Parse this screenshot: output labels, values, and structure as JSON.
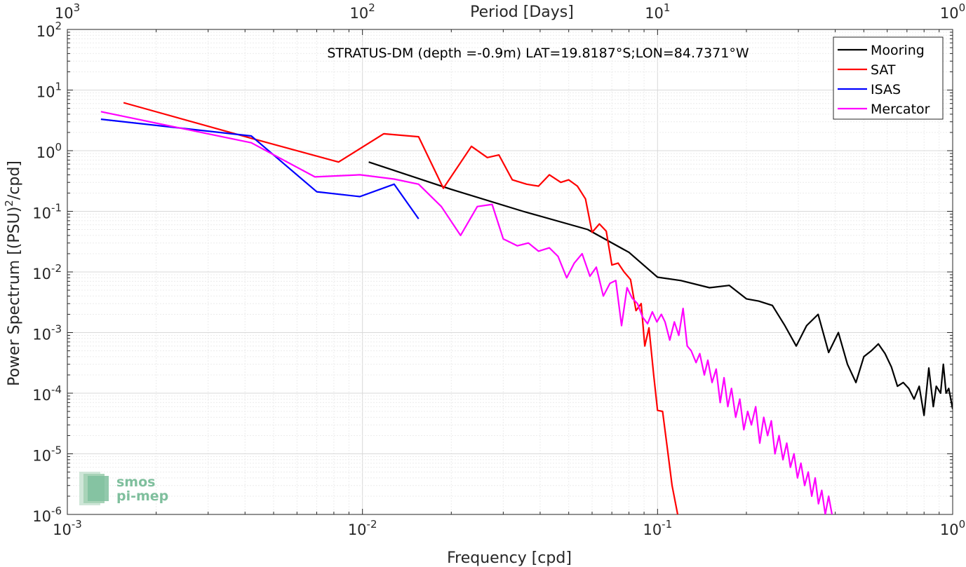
{
  "chart_data": {
    "type": "line",
    "title": "STRATUS-DM (depth =-0.9m) LAT=19.8187°S;LON=84.7371°W",
    "xlabel": "Frequency [cpd]",
    "ylabel": "Power Spectrum [(PSU)",
    "ylabel_sup": "2",
    "ylabel_tail": "/cpd]",
    "top_xlabel": "Period [Days]",
    "x_scale": "log",
    "y_scale": "log",
    "xlim": [
      0.001,
      1
    ],
    "ylim": [
      1e-06,
      100
    ],
    "grid": true,
    "legend_position": "top-right",
    "x_ticks": [
      {
        "value": 0.001,
        "base": "10",
        "exp": "-3"
      },
      {
        "value": 0.01,
        "base": "10",
        "exp": "-2"
      },
      {
        "value": 0.1,
        "base": "10",
        "exp": "-1"
      },
      {
        "value": 1,
        "base": "10",
        "exp": "0"
      }
    ],
    "top_x_ticks": [
      {
        "value": 0.001,
        "base": "10",
        "exp": "3"
      },
      {
        "value": 0.01,
        "base": "10",
        "exp": "2"
      },
      {
        "value": 0.1,
        "base": "10",
        "exp": "1"
      },
      {
        "value": 1,
        "base": "10",
        "exp": "0"
      }
    ],
    "y_ticks": [
      {
        "value": 1e-06,
        "base": "10",
        "exp": "-6"
      },
      {
        "value": 1e-05,
        "base": "10",
        "exp": "-5"
      },
      {
        "value": 0.0001,
        "base": "10",
        "exp": "-4"
      },
      {
        "value": 0.001,
        "base": "10",
        "exp": "-3"
      },
      {
        "value": 0.01,
        "base": "10",
        "exp": "-2"
      },
      {
        "value": 0.1,
        "base": "10",
        "exp": "-1"
      },
      {
        "value": 1,
        "base": "10",
        "exp": "0"
      },
      {
        "value": 10,
        "base": "10",
        "exp": "1"
      },
      {
        "value": 100,
        "base": "10",
        "exp": "2"
      }
    ],
    "series": [
      {
        "name": "Mooring",
        "color": "#000000",
        "points": [
          [
            0.0105,
            0.65
          ],
          [
            0.02,
            0.23
          ],
          [
            0.035,
            0.1
          ],
          [
            0.058,
            0.05
          ],
          [
            0.08,
            0.021
          ],
          [
            0.1,
            0.0082
          ],
          [
            0.12,
            0.0072
          ],
          [
            0.15,
            0.0055
          ],
          [
            0.175,
            0.006
          ],
          [
            0.2,
            0.0036
          ],
          [
            0.22,
            0.0033
          ],
          [
            0.245,
            0.0028
          ],
          [
            0.27,
            0.0013
          ],
          [
            0.295,
            0.0006
          ],
          [
            0.32,
            0.0013
          ],
          [
            0.35,
            0.002
          ],
          [
            0.38,
            0.00047
          ],
          [
            0.41,
            0.001
          ],
          [
            0.44,
            0.0003
          ],
          [
            0.47,
            0.00015
          ],
          [
            0.5,
            0.0004
          ],
          [
            0.53,
            0.0005
          ],
          [
            0.56,
            0.00065
          ],
          [
            0.59,
            0.00045
          ],
          [
            0.62,
            0.00027
          ],
          [
            0.65,
            0.00013
          ],
          [
            0.68,
            0.00015
          ],
          [
            0.71,
            0.00012
          ],
          [
            0.74,
            8e-05
          ],
          [
            0.77,
            0.00013
          ],
          [
            0.8,
            4.3e-05
          ],
          [
            0.83,
            0.00026
          ],
          [
            0.86,
            6e-05
          ],
          [
            0.88,
            0.00013
          ],
          [
            0.91,
            0.0001
          ],
          [
            0.93,
            0.0003
          ],
          [
            0.95,
            0.0001
          ],
          [
            0.97,
            0.00012
          ],
          [
            1.0,
            5.5e-05
          ]
        ]
      },
      {
        "name": "SAT",
        "color": "#ff0000",
        "points": [
          [
            0.00155,
            6.2
          ],
          [
            0.0042,
            1.6
          ],
          [
            0.0083,
            0.65
          ],
          [
            0.0118,
            1.9
          ],
          [
            0.0155,
            1.7
          ],
          [
            0.0188,
            0.24
          ],
          [
            0.0234,
            1.18
          ],
          [
            0.0265,
            0.77
          ],
          [
            0.029,
            0.85
          ],
          [
            0.0322,
            0.33
          ],
          [
            0.036,
            0.28
          ],
          [
            0.0395,
            0.26
          ],
          [
            0.043,
            0.4
          ],
          [
            0.047,
            0.3
          ],
          [
            0.05,
            0.33
          ],
          [
            0.0535,
            0.26
          ],
          [
            0.057,
            0.16
          ],
          [
            0.06,
            0.045
          ],
          [
            0.0635,
            0.062
          ],
          [
            0.067,
            0.047
          ],
          [
            0.07,
            0.013
          ],
          [
            0.0735,
            0.014
          ],
          [
            0.077,
            0.01
          ],
          [
            0.081,
            0.0075
          ],
          [
            0.0845,
            0.0023
          ],
          [
            0.088,
            0.003
          ],
          [
            0.0905,
            0.0006
          ],
          [
            0.0935,
            0.0012
          ],
          [
            0.097,
            0.0002
          ],
          [
            0.1,
            5.2e-05
          ],
          [
            0.104,
            5e-05
          ],
          [
            0.108,
            1.2e-05
          ],
          [
            0.112,
            3e-06
          ],
          [
            0.117,
            1e-06
          ]
        ]
      },
      {
        "name": "ISAS",
        "color": "#0000ff",
        "points": [
          [
            0.0013,
            3.3
          ],
          [
            0.0042,
            1.75
          ],
          [
            0.007,
            0.21
          ],
          [
            0.0098,
            0.175
          ],
          [
            0.0128,
            0.28
          ],
          [
            0.0155,
            0.075
          ]
        ]
      },
      {
        "name": "Mercator",
        "color": "#ff00ff",
        "points": [
          [
            0.0013,
            4.4
          ],
          [
            0.0042,
            1.35
          ],
          [
            0.0069,
            0.37
          ],
          [
            0.0098,
            0.4
          ],
          [
            0.0128,
            0.34
          ],
          [
            0.0155,
            0.28
          ],
          [
            0.0185,
            0.12
          ],
          [
            0.0215,
            0.04
          ],
          [
            0.0245,
            0.12
          ],
          [
            0.0275,
            0.13
          ],
          [
            0.03,
            0.035
          ],
          [
            0.0335,
            0.027
          ],
          [
            0.0365,
            0.03
          ],
          [
            0.0395,
            0.022
          ],
          [
            0.043,
            0.025
          ],
          [
            0.046,
            0.018
          ],
          [
            0.0492,
            0.008
          ],
          [
            0.0522,
            0.014
          ],
          [
            0.0555,
            0.02
          ],
          [
            0.059,
            0.0085
          ],
          [
            0.062,
            0.012
          ],
          [
            0.0655,
            0.004
          ],
          [
            0.069,
            0.0065
          ],
          [
            0.0722,
            0.0072
          ],
          [
            0.0755,
            0.0013
          ],
          [
            0.0788,
            0.0055
          ],
          [
            0.082,
            0.0037
          ],
          [
            0.0855,
            0.003
          ],
          [
            0.089,
            0.0018
          ],
          [
            0.0925,
            0.0014
          ],
          [
            0.096,
            0.0022
          ],
          [
            0.0995,
            0.0015
          ],
          [
            0.103,
            0.002
          ],
          [
            0.106,
            0.0015
          ],
          [
            0.11,
            0.00075
          ],
          [
            0.114,
            0.0015
          ],
          [
            0.118,
            0.0009
          ],
          [
            0.122,
            0.0025
          ],
          [
            0.126,
            0.0006
          ],
          [
            0.13,
            0.0005
          ],
          [
            0.135,
            0.00032
          ],
          [
            0.139,
            0.00045
          ],
          [
            0.144,
            0.0002
          ],
          [
            0.148,
            0.00035
          ],
          [
            0.153,
            0.00015
          ],
          [
            0.158,
            0.00025
          ],
          [
            0.163,
            7e-05
          ],
          [
            0.168,
            0.00018
          ],
          [
            0.173,
            6e-05
          ],
          [
            0.178,
            0.00012
          ],
          [
            0.184,
            4e-05
          ],
          [
            0.19,
            8e-05
          ],
          [
            0.196,
            2.5e-05
          ],
          [
            0.202,
            5e-05
          ],
          [
            0.208,
            3e-05
          ],
          [
            0.215,
            6e-05
          ],
          [
            0.222,
            1.5e-05
          ],
          [
            0.229,
            4e-05
          ],
          [
            0.236,
            2e-05
          ],
          [
            0.243,
            3.5e-05
          ],
          [
            0.25,
            1e-05
          ],
          [
            0.258,
            2e-05
          ],
          [
            0.266,
            8e-06
          ],
          [
            0.274,
            1.5e-05
          ],
          [
            0.282,
            6e-06
          ],
          [
            0.29,
            1e-05
          ],
          [
            0.298,
            4e-06
          ],
          [
            0.306,
            7e-06
          ],
          [
            0.315,
            3e-06
          ],
          [
            0.324,
            5e-06
          ],
          [
            0.333,
            2e-06
          ],
          [
            0.342,
            4e-06
          ],
          [
            0.351,
            1.5e-06
          ],
          [
            0.36,
            2.5e-06
          ],
          [
            0.37,
            1e-06
          ],
          [
            0.38,
            2e-06
          ],
          [
            0.39,
            1e-06
          ]
        ]
      }
    ]
  },
  "logo": {
    "line1": "smos",
    "line2": "pi-mep"
  }
}
